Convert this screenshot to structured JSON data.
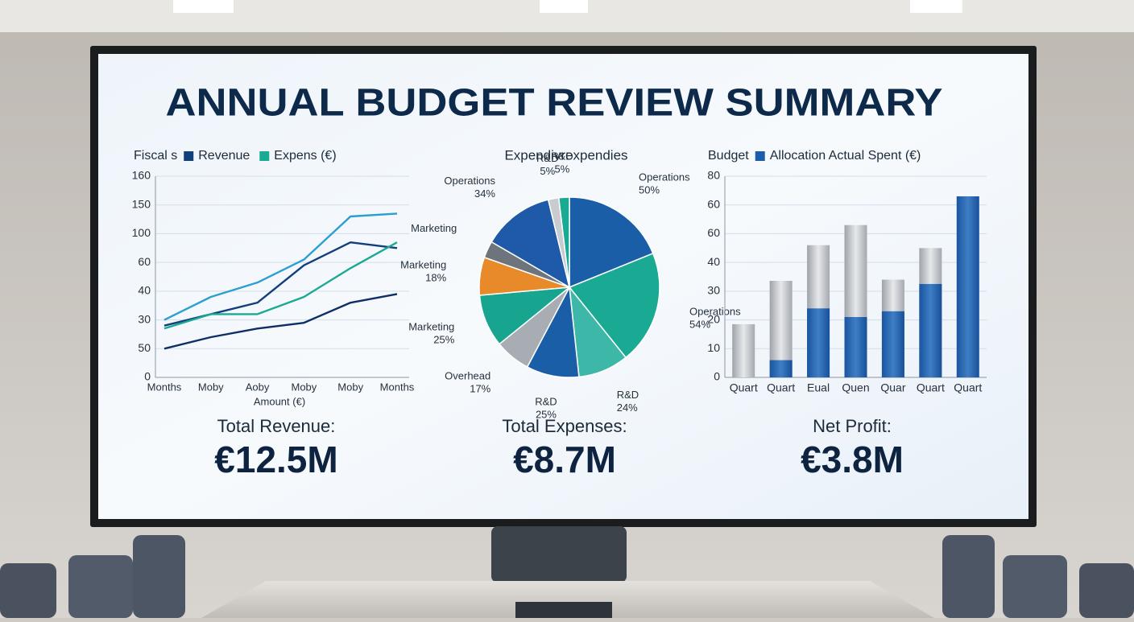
{
  "title": "ANNUAL BUDGET REVIEW SUMMARY",
  "chart_data": [
    {
      "type": "line",
      "legend_title": "Fiscal s",
      "x_label": "Amount (€)",
      "categories": [
        "Months",
        "Moby",
        "Aoby",
        "Moby",
        "Moby",
        "Months"
      ],
      "ylim": [
        0,
        7
      ],
      "yticks": [
        {
          "value": 0,
          "label": "0"
        },
        {
          "value": 1,
          "label": "50"
        },
        {
          "value": 2,
          "label": "30"
        },
        {
          "value": 3,
          "label": "40"
        },
        {
          "value": 4,
          "label": "60"
        },
        {
          "value": 5,
          "label": "100"
        },
        {
          "value": 6,
          "label": "150"
        },
        {
          "value": 7,
          "label": "160"
        }
      ],
      "grid": true,
      "series": [
        {
          "color": "#2a9fd0",
          "values": [
            2.0,
            2.8,
            3.3,
            4.1,
            5.6,
            5.7
          ]
        },
        {
          "name": "Revenue",
          "color": "#123f7a",
          "values": [
            1.8,
            2.2,
            2.6,
            3.9,
            4.7,
            4.5
          ]
        },
        {
          "name": "Expens (€)",
          "color": "#1aaa94",
          "values": [
            1.7,
            2.2,
            2.2,
            2.8,
            3.8,
            4.7
          ]
        },
        {
          "color": "#0e2f66",
          "values": [
            1.0,
            1.4,
            1.7,
            1.9,
            2.6,
            2.9
          ]
        }
      ]
    },
    {
      "type": "pie",
      "title": "Expendivrexpendies",
      "categories": [
        "Operations",
        "Operations",
        "R&D",
        "R&D",
        "Overhead",
        "Marketing",
        "Marketing",
        "Marketing",
        "Operations",
        "R&D",
        "R&D"
      ],
      "values": [
        50,
        54,
        24,
        25,
        17,
        25,
        18,
        8,
        34,
        5,
        5
      ],
      "value_labels": [
        "50%",
        "54%",
        "24%",
        "25%",
        "17%",
        "25%",
        "18%",
        null,
        "34%",
        "5%",
        "5%"
      ],
      "colors": [
        "#1a5ea8",
        "#1aaa94",
        "#3db8a8",
        "#1a5ea8",
        "#a8adb4",
        "#17a58f",
        "#e8892a",
        "#6d747c",
        "#1f5aa8",
        "#c8ccd0",
        "#1aaa94"
      ]
    },
    {
      "type": "bar",
      "legend_title": "Budget",
      "categories": [
        "Quart",
        "Quart",
        "Eual",
        "Quen",
        "Quar",
        "Quart",
        "Quart"
      ],
      "ylim": [
        0,
        7
      ],
      "yticks": [
        {
          "value": 0,
          "label": "0"
        },
        {
          "value": 1,
          "label": "10"
        },
        {
          "value": 2,
          "label": "20"
        },
        {
          "value": 3,
          "label": "30"
        },
        {
          "value": 4,
          "label": "40"
        },
        {
          "value": 5,
          "label": "60"
        },
        {
          "value": 6,
          "label": "60"
        },
        {
          "value": 7,
          "label": "80"
        }
      ],
      "series": [
        {
          "color": "#b4b8be",
          "values": [
            1.85,
            3.36,
            4.6,
            5.3,
            3.4,
            4.5,
            null
          ]
        },
        {
          "name": "Allocation Actual Spent (€)",
          "color": "#1d5ca8",
          "values": [
            null,
            0.6,
            2.4,
            2.1,
            2.3,
            3.25,
            6.3
          ]
        }
      ]
    }
  ],
  "kpis": [
    {
      "label": "Total Revenue:",
      "value": "€12.5M"
    },
    {
      "label": "Total Expenses:",
      "value": "€8.7M"
    },
    {
      "label": "Net Profit:",
      "value": "€3.8M"
    }
  ]
}
